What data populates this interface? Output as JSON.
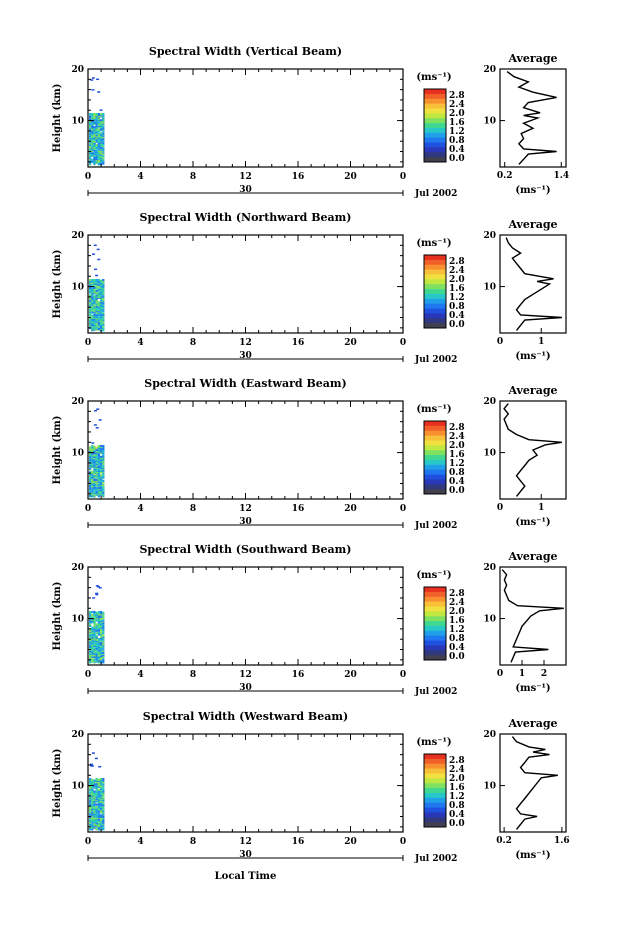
{
  "page": {
    "xlabel": "Local Time",
    "x_ticks": [
      "0",
      "4",
      "8",
      "12",
      "16",
      "20",
      "0"
    ],
    "day_marker": "30",
    "date_label": "Jul 2002",
    "y_label": "Height (km)",
    "y_ticks": [
      "20",
      "10"
    ],
    "colorbar": {
      "unit": "(ms⁻¹)",
      "ticks": [
        "2.8",
        "2.4",
        "2.0",
        "1.6",
        "1.2",
        "0.8",
        "0.4",
        "0.0"
      ],
      "colors": [
        "#e83020",
        "#f06028",
        "#f89030",
        "#f8c038",
        "#f0e040",
        "#c0e840",
        "#80e060",
        "#40d890",
        "#28c8c8",
        "#20a0e8",
        "#2078f0",
        "#2050e0",
        "#2838b8",
        "#303880",
        "#404050"
      ]
    },
    "avg_title": "Average",
    "avg_unit": "(ms⁻¹)"
  },
  "chart_data": [
    {
      "type": "heatmap",
      "title": "Spectral Width (Vertical Beam)",
      "xlim": [
        0,
        24
      ],
      "ylim": [
        1,
        20
      ],
      "data_end_hour": 1.0,
      "profile": {
        "type": "line",
        "title": "Average",
        "x_ticks": [
          0.2,
          1.4
        ],
        "x_tick_labels": [
          "0.2",
          "1.4"
        ],
        "xlim": [
          0.1,
          1.5
        ],
        "heights": [
          1.5,
          2.5,
          3.5,
          4.0,
          4.5,
          5.5,
          6.5,
          7.5,
          8.5,
          9.5,
          10.5,
          11.0,
          11.5,
          12.5,
          13.5,
          14.5,
          15.5,
          16.5,
          17.5,
          18.5,
          19.5
        ],
        "values": [
          0.5,
          0.6,
          0.7,
          1.3,
          0.6,
          0.5,
          0.6,
          0.55,
          0.8,
          0.6,
          0.9,
          0.6,
          0.95,
          0.6,
          0.7,
          1.3,
          0.8,
          0.5,
          0.7,
          0.4,
          0.25
        ]
      }
    },
    {
      "type": "heatmap",
      "title": "Spectral Width (Northward Beam)",
      "xlim": [
        0,
        24
      ],
      "ylim": [
        1,
        20
      ],
      "data_end_hour": 1.0,
      "profile": {
        "type": "line",
        "title": "Average",
        "x_ticks": [
          0,
          1
        ],
        "x_tick_labels": [
          "0",
          "1"
        ],
        "xlim": [
          0,
          1.6
        ],
        "heights": [
          1.5,
          2.5,
          3.5,
          4.0,
          4.5,
          5.5,
          6.5,
          7.5,
          8.5,
          9.5,
          10.5,
          11.0,
          11.5,
          12.5,
          13.5,
          14.5,
          15.5,
          16.5,
          17.5,
          18.5,
          19.5
        ],
        "values": [
          0.4,
          0.5,
          0.6,
          1.5,
          0.5,
          0.4,
          0.5,
          0.6,
          0.8,
          1.0,
          1.2,
          0.9,
          1.3,
          0.6,
          0.5,
          0.4,
          0.3,
          0.5,
          0.3,
          0.2,
          0.15
        ]
      }
    },
    {
      "type": "heatmap",
      "title": "Spectral Width (Eastward Beam)",
      "xlim": [
        0,
        24
      ],
      "ylim": [
        1,
        20
      ],
      "data_end_hour": 1.0,
      "profile": {
        "type": "line",
        "title": "Average",
        "x_ticks": [
          0,
          1
        ],
        "x_tick_labels": [
          "0",
          "1"
        ],
        "xlim": [
          0,
          1.6
        ],
        "heights": [
          1.5,
          2.5,
          3.5,
          4.5,
          5.5,
          6.5,
          7.5,
          8.5,
          9.5,
          10.5,
          11.5,
          12.0,
          12.5,
          13.5,
          14.5,
          15.5,
          16.5,
          17.5,
          18.5,
          19.5
        ],
        "values": [
          0.4,
          0.5,
          0.6,
          0.5,
          0.4,
          0.5,
          0.6,
          0.7,
          0.9,
          0.8,
          1.1,
          1.5,
          0.7,
          0.4,
          0.2,
          0.15,
          0.1,
          0.2,
          0.1,
          0.2
        ]
      }
    },
    {
      "type": "heatmap",
      "title": "Spectral Width (Southward Beam)",
      "xlim": [
        0,
        24
      ],
      "ylim": [
        1,
        20
      ],
      "data_end_hour": 1.0,
      "profile": {
        "type": "line",
        "title": "Average",
        "x_ticks": [
          0,
          1,
          2
        ],
        "x_tick_labels": [
          "0",
          "1",
          "2"
        ],
        "xlim": [
          0,
          3.0
        ],
        "heights": [
          1.5,
          2.5,
          3.5,
          4.0,
          4.5,
          5.5,
          6.5,
          7.5,
          8.5,
          9.5,
          10.5,
          11.5,
          12.0,
          12.5,
          13.5,
          14.5,
          15.5,
          16.5,
          17.5,
          18.5,
          19.5
        ],
        "values": [
          0.5,
          0.6,
          0.7,
          2.2,
          0.6,
          0.7,
          0.8,
          0.9,
          1.0,
          1.2,
          1.4,
          1.8,
          2.9,
          0.8,
          0.4,
          0.3,
          0.2,
          0.3,
          0.2,
          0.3,
          0.1
        ]
      }
    },
    {
      "type": "heatmap",
      "title": "Spectral Width (Westward Beam)",
      "xlim": [
        0,
        24
      ],
      "ylim": [
        1,
        20
      ],
      "data_end_hour": 1.0,
      "profile": {
        "type": "line",
        "title": "Average",
        "x_ticks": [
          0.2,
          1.6
        ],
        "x_tick_labels": [
          "0.2",
          "1.6"
        ],
        "xlim": [
          0.1,
          1.7
        ],
        "heights": [
          1.5,
          2.5,
          3.5,
          4.0,
          4.5,
          5.5,
          6.5,
          7.5,
          8.5,
          9.5,
          10.5,
          11.5,
          12.0,
          12.5,
          13.5,
          14.5,
          15.5,
          16.0,
          16.5,
          17.0,
          17.5,
          18.5,
          19.5
        ],
        "values": [
          0.5,
          0.6,
          0.7,
          1.0,
          0.6,
          0.5,
          0.6,
          0.7,
          0.8,
          0.9,
          1.0,
          1.1,
          1.5,
          0.7,
          0.6,
          0.7,
          0.8,
          1.3,
          0.9,
          1.2,
          0.8,
          0.5,
          0.4
        ]
      }
    }
  ]
}
